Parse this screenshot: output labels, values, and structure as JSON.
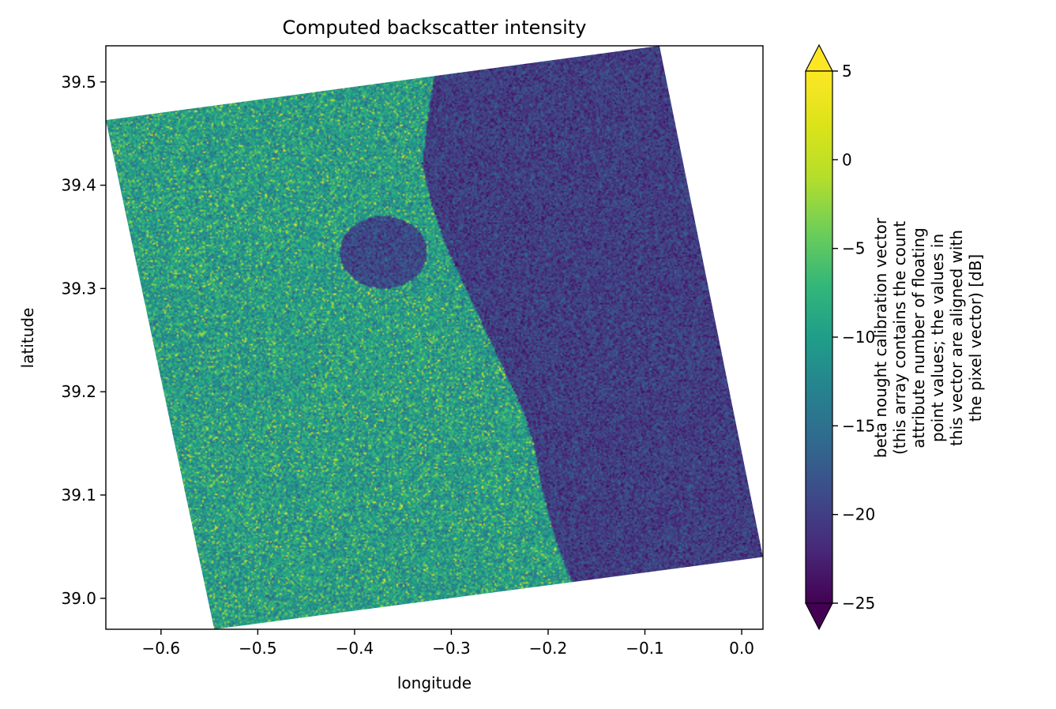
{
  "chart_data": {
    "type": "heatmap",
    "title": "Computed backscatter intensity",
    "xlabel": "longitude",
    "ylabel": "latitude",
    "xlim": [
      -0.657,
      0.022
    ],
    "ylim": [
      38.97,
      39.535
    ],
    "x_ticks": [
      -0.6,
      -0.5,
      -0.4,
      -0.3,
      -0.2,
      -0.1,
      0.0
    ],
    "x_tick_labels": [
      "−0.6",
      "−0.5",
      "−0.4",
      "−0.3",
      "−0.2",
      "−0.1",
      "0.0"
    ],
    "y_ticks": [
      39.0,
      39.1,
      39.2,
      39.3,
      39.4,
      39.5
    ],
    "y_tick_labels": [
      "39.0",
      "39.1",
      "39.2",
      "39.3",
      "39.4",
      "39.5"
    ],
    "grid": false,
    "colormap": "viridis",
    "colorbar": {
      "vmin": -25,
      "vmax": 5,
      "extend": "both",
      "ticks": [
        5,
        0,
        -5,
        -10,
        -15,
        -20,
        -25
      ],
      "tick_labels": [
        "5",
        "0",
        "−5",
        "−10",
        "−15",
        "−20",
        "−25"
      ],
      "label_lines": [
        "beta nought calibration vector",
        "(this array contains the count",
        "attribute number of floating",
        "point values; the values in",
        "this vector are aligned with",
        "the pixel vector) [dB]"
      ]
    },
    "footprint_corners_lonlat": [
      [
        -0.657,
        39.463
      ],
      [
        -0.085,
        39.535
      ],
      [
        0.022,
        39.04
      ],
      [
        -0.545,
        38.97
      ]
    ],
    "coastline_lonlat": [
      [
        -0.318,
        39.505
      ],
      [
        -0.325,
        39.46
      ],
      [
        -0.33,
        39.42
      ],
      [
        -0.32,
        39.38
      ],
      [
        -0.305,
        39.34
      ],
      [
        -0.285,
        39.3
      ],
      [
        -0.265,
        39.26
      ],
      [
        -0.245,
        39.22
      ],
      [
        -0.225,
        39.18
      ],
      [
        -0.215,
        39.15
      ],
      [
        -0.205,
        39.1
      ],
      [
        -0.19,
        39.05
      ],
      [
        -0.175,
        39.015
      ]
    ],
    "land_mean_db": -10,
    "sea_mean_db": -20
  }
}
